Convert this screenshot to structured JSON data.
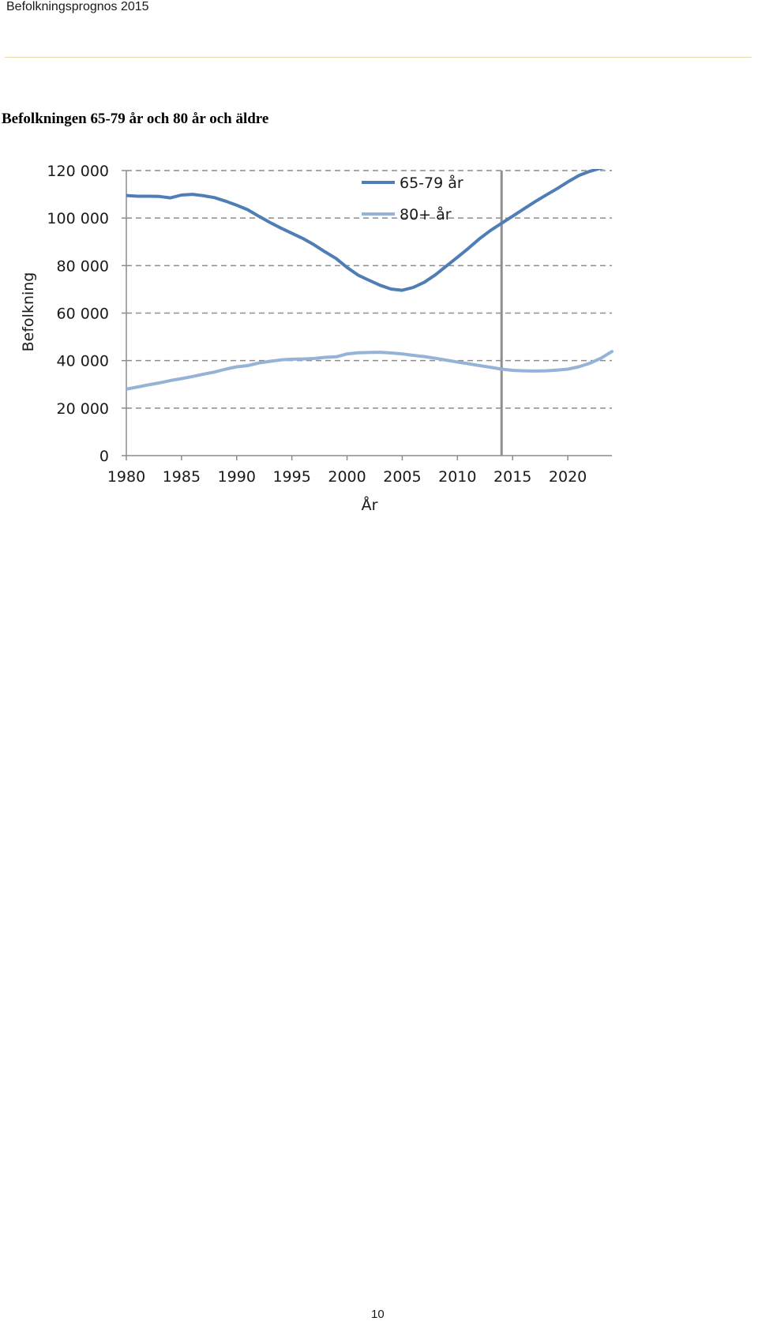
{
  "header": {
    "running_title": "Befolkningsprognos 2015"
  },
  "section": {
    "title": "Befolkningen 65-79 år och 80 år och äldre"
  },
  "page": {
    "number": "10"
  },
  "chart_data": {
    "type": "line",
    "title": "",
    "xlabel": "År",
    "ylabel": "Befolkning",
    "xlim": [
      1980,
      2024
    ],
    "ylim": [
      0,
      120000
    ],
    "x_ticks": [
      1980,
      1985,
      1990,
      1995,
      2000,
      2005,
      2010,
      2015,
      2020
    ],
    "x_tick_labels": [
      "1980",
      "1985",
      "1990",
      "1995",
      "2000",
      "2005",
      "2010",
      "2015",
      "2020"
    ],
    "y_ticks": [
      0,
      20000,
      40000,
      60000,
      80000,
      100000,
      120000
    ],
    "y_tick_labels": [
      "0",
      "20 000",
      "40 000",
      "60 000",
      "80 000",
      "100 000",
      "120 000"
    ],
    "grid": "horizontal dashed",
    "legend_position": "top-right",
    "forecast_line_x": 2014,
    "x": [
      1980,
      1981,
      1982,
      1983,
      1984,
      1985,
      1986,
      1987,
      1988,
      1989,
      1990,
      1991,
      1992,
      1993,
      1994,
      1995,
      1996,
      1997,
      1998,
      1999,
      2000,
      2001,
      2002,
      2003,
      2004,
      2005,
      2006,
      2007,
      2008,
      2009,
      2010,
      2011,
      2012,
      2013,
      2014,
      2015,
      2016,
      2017,
      2018,
      2019,
      2020,
      2021,
      2022,
      2023,
      2024
    ],
    "series": [
      {
        "name": "65-79 år",
        "color": "#4f7db5",
        "values": [
          109500,
          109200,
          109200,
          109100,
          108500,
          109700,
          110000,
          109400,
          108600,
          107100,
          105400,
          103500,
          100800,
          98200,
          95800,
          93600,
          91400,
          88800,
          85800,
          83000,
          79200,
          76000,
          73800,
          71700,
          70100,
          69600,
          70800,
          73000,
          76100,
          79800,
          83500,
          87300,
          91300,
          94800,
          97800,
          100800,
          103800,
          106800,
          109600,
          112300,
          115200,
          117900,
          119700,
          121000,
          122000
        ]
      },
      {
        "name": "80+ år",
        "color": "#95b3d7",
        "values": [
          28000,
          28900,
          29800,
          30600,
          31600,
          32400,
          33300,
          34300,
          35200,
          36400,
          37400,
          37900,
          39000,
          39700,
          40300,
          40600,
          40700,
          40900,
          41400,
          41600,
          42800,
          43300,
          43400,
          43500,
          43200,
          42800,
          42200,
          41700,
          41000,
          40200,
          39400,
          38700,
          37900,
          37200,
          36400,
          35900,
          35700,
          35600,
          35700,
          36000,
          36400,
          37400,
          38900,
          41000,
          43800
        ]
      }
    ]
  }
}
